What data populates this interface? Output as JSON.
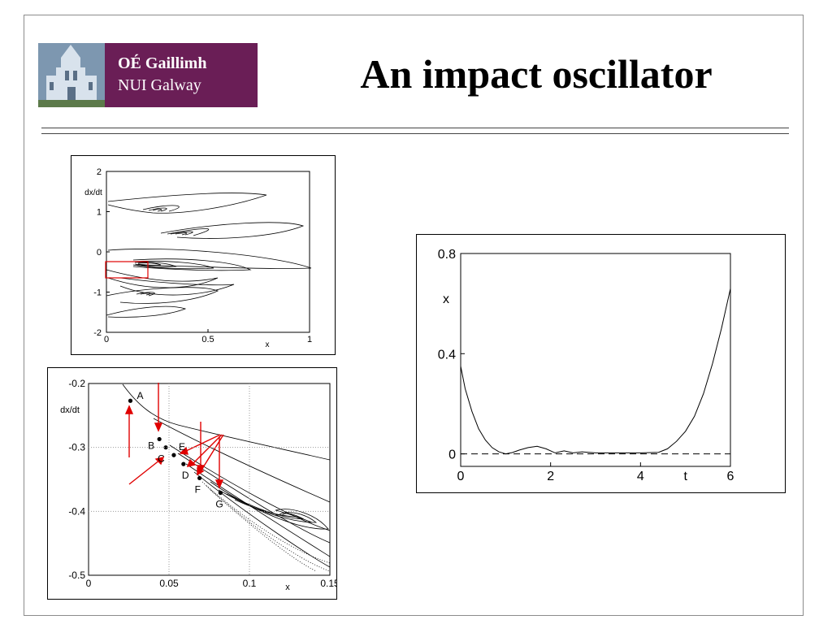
{
  "slide": {
    "title": "An impact oscillator",
    "logo": {
      "line1": "OÉ Gaillimh",
      "line2": "NUI Galway"
    }
  },
  "colors": {
    "accent": "#6a1e56",
    "annotation": "#e00000"
  },
  "chart_data": [
    {
      "type": "line",
      "title": "",
      "xlabel": "x",
      "ylabel": "dx/dt",
      "xlim": [
        0,
        1
      ],
      "ylim": [
        -2,
        2
      ],
      "xticks": [
        "0",
        "0.5",
        "1"
      ],
      "yticks": [
        "2",
        "1",
        "0",
        "-1",
        "-2"
      ],
      "grid": false,
      "highlight_box": {
        "x": [
          0,
          0.2
        ],
        "y": [
          -0.65,
          -0.25
        ]
      }
    },
    {
      "type": "line",
      "title": "",
      "xlabel": "x",
      "ylabel": "dx/dt",
      "xlim": [
        0,
        0.15
      ],
      "ylim": [
        -0.5,
        -0.2
      ],
      "xticks": [
        "0",
        "0.05",
        "0.1",
        "0.15"
      ],
      "yticks": [
        "-0.2",
        "-0.3",
        "-0.4",
        "-0.5"
      ],
      "grid": true,
      "points": [
        {
          "label": "A",
          "x": 0.026,
          "y": -0.227
        },
        {
          "label": "B",
          "x": 0.044,
          "y": -0.287
        },
        {
          "label": "C",
          "x": 0.048,
          "y": -0.3
        },
        {
          "label": "E",
          "x": 0.053,
          "y": -0.312
        },
        {
          "label": "D",
          "x": 0.059,
          "y": -0.326
        },
        {
          "label": "F",
          "x": 0.069,
          "y": -0.348
        },
        {
          "label": "G",
          "x": 0.082,
          "y": -0.371
        }
      ]
    },
    {
      "type": "line",
      "title": "",
      "xlabel": "t",
      "ylabel": "x",
      "xlim": [
        0,
        6
      ],
      "ylim": [
        -0.05,
        0.8
      ],
      "xticks": [
        "0",
        "2",
        "4",
        "6"
      ],
      "yticks": [
        "0.8",
        "0.4",
        "0"
      ],
      "grid": false,
      "series": [
        {
          "x": [
            0,
            0.1,
            0.25,
            0.4,
            0.55,
            0.7,
            0.85,
            1.0,
            1.15,
            1.3,
            1.5,
            1.7,
            1.9,
            2.1,
            2.3,
            2.5,
            2.7,
            3.0,
            3.5,
            4.0,
            4.4,
            4.6,
            4.8,
            5.0,
            5.2,
            5.4,
            5.6,
            5.8,
            6.0
          ],
          "y": [
            0.35,
            0.26,
            0.17,
            0.1,
            0.055,
            0.025,
            0.008,
            0.0,
            0.005,
            0.015,
            0.025,
            0.03,
            0.02,
            0.004,
            0.012,
            0.004,
            0.008,
            0.004,
            0.004,
            0.004,
            0.006,
            0.02,
            0.05,
            0.09,
            0.15,
            0.24,
            0.36,
            0.5,
            0.66
          ]
        }
      ],
      "reference_line": {
        "y": 0,
        "style": "dashed"
      }
    }
  ]
}
